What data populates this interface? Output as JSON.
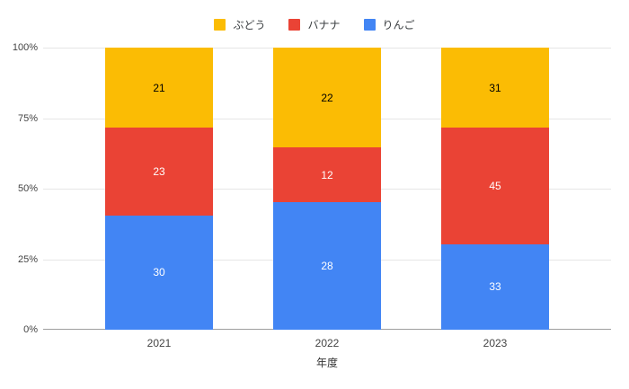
{
  "chart_data": {
    "type": "bar",
    "variant": "stacked-100-percent",
    "categories": [
      "2021",
      "2022",
      "2023"
    ],
    "series": [
      {
        "name": "りんご",
        "color": "#4285F4",
        "label_color": "#ffffff",
        "values": [
          30,
          28,
          33
        ]
      },
      {
        "name": "バナナ",
        "color": "#EA4335",
        "label_color": "#ffffff",
        "values": [
          23,
          12,
          45
        ]
      },
      {
        "name": "ぶどう",
        "color": "#FBBC04",
        "label_color": "#000000",
        "values": [
          21,
          22,
          31
        ]
      }
    ],
    "legend_order": [
      "ぶどう",
      "バナナ",
      "りんご"
    ],
    "legend_position": "top",
    "title": "",
    "xlabel": "年度",
    "ylabel": "",
    "ylim": [
      0,
      100
    ],
    "grid": true,
    "y_ticks": [
      {
        "label": "0%",
        "value": 0
      },
      {
        "label": "25%",
        "value": 25
      },
      {
        "label": "50%",
        "value": 50
      },
      {
        "label": "75%",
        "value": 75
      },
      {
        "label": "100%",
        "value": 100
      }
    ],
    "colors": {
      "gridline": "#e6e6e6",
      "axis_line": "#9e9e9e",
      "axis_text": "#444444",
      "legend_text": "#3c4043",
      "background": "#ffffff"
    }
  }
}
